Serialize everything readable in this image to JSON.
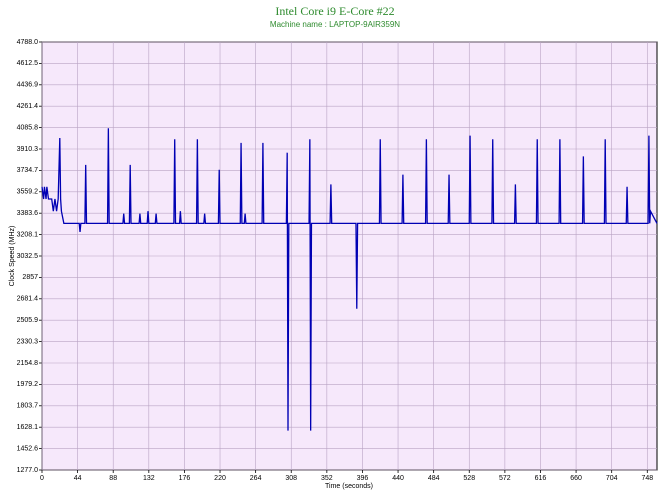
{
  "chart_data": {
    "type": "line",
    "title": "Intel Core i9 E-Core #22",
    "subtitle": "Machine name : LAPTOP-9AIR359N",
    "x_label": "Time (seconds)",
    "y_label": "Clock Speed (MHz)",
    "xlim": [
      0,
      760
    ],
    "xticks": [
      0,
      44,
      88,
      132,
      176,
      220,
      264,
      308,
      352,
      396,
      440,
      484,
      528,
      572,
      616,
      660,
      704,
      748
    ],
    "ylim": [
      1277,
      4788
    ],
    "yticks": [
      {
        "value": 1277,
        "label": "1277.0"
      },
      1452.6,
      1628.1,
      1803.7,
      1979.2,
      2154.8,
      2330.3,
      2505.9,
      2681.4,
      2857,
      3032.5,
      3208.1,
      3383.6,
      3559.2,
      3734.7,
      3910.3,
      4085.8,
      4261.4,
      4436.9,
      4612.5,
      {
        "value": 4788,
        "label": "4788.0"
      }
    ],
    "grid": true,
    "series": [
      {
        "name": "Clock Speed",
        "color": "#0000b4",
        "x": [
          0,
          2,
          3,
          5,
          6,
          8,
          12,
          14,
          16,
          18,
          20,
          22,
          23,
          24,
          27,
          46,
          47,
          48,
          53,
          54,
          55,
          81,
          82,
          83,
          100,
          101,
          102,
          108,
          109,
          110,
          120,
          121,
          122,
          130,
          131,
          132,
          140,
          141,
          142,
          163,
          164,
          165,
          170,
          171,
          172,
          191,
          192,
          193,
          200,
          201,
          202,
          218,
          219,
          220,
          245,
          246,
          247,
          250,
          251,
          252,
          272,
          273,
          274,
          302,
          303,
          304,
          305,
          330,
          331,
          332,
          333,
          356,
          357,
          358,
          388,
          389,
          390,
          417,
          418,
          419,
          445,
          446,
          447,
          474,
          475,
          476,
          502,
          503,
          504,
          528,
          529,
          530,
          556,
          557,
          558,
          584,
          585,
          586,
          611,
          612,
          613,
          639,
          640,
          641,
          668,
          669,
          670,
          695,
          696,
          697,
          722,
          723,
          724,
          749,
          750,
          751,
          752,
          760
        ],
        "values": [
          3600,
          3500,
          3600,
          3500,
          3600,
          3500,
          3500,
          3400,
          3500,
          3400,
          3500,
          4000,
          3500,
          3400,
          3300,
          3300,
          3230,
          3300,
          3300,
          3780,
          3300,
          3300,
          4080,
          3300,
          3300,
          3380,
          3300,
          3300,
          3780,
          3300,
          3300,
          3380,
          3300,
          3300,
          3400,
          3300,
          3300,
          3380,
          3300,
          3300,
          3990,
          3300,
          3300,
          3400,
          3300,
          3300,
          3990,
          3300,
          3300,
          3380,
          3300,
          3300,
          3740,
          3300,
          3300,
          3960,
          3300,
          3300,
          3380,
          3300,
          3300,
          3960,
          3300,
          3300,
          3880,
          1600,
          3300,
          3300,
          3990,
          1600,
          3300,
          3300,
          3620,
          3300,
          3300,
          2600,
          3300,
          3300,
          3990,
          3300,
          3300,
          3700,
          3300,
          3300,
          3990,
          3300,
          3300,
          3700,
          3300,
          3300,
          4020,
          3300,
          3300,
          3990,
          3300,
          3300,
          3620,
          3300,
          3300,
          3990,
          3300,
          3300,
          3990,
          3300,
          3300,
          3850,
          3300,
          3300,
          3990,
          3300,
          3300,
          3600,
          3300,
          3300,
          4020,
          3300,
          3400,
          3300
        ]
      }
    ]
  }
}
